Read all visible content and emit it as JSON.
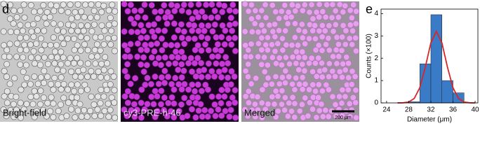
{
  "panel_labels": [
    "d",
    "e"
  ],
  "images": [
    {
      "label": "Bright-field"
    },
    {
      "label": "cy3-PRE-h-46"
    },
    {
      "label": "Merged"
    }
  ],
  "scale_bar": "200 μm",
  "chart_data": {
    "type": "histogram",
    "xlabel": "Diameter (μm)",
    "ylabel": "Counts (×100)",
    "bins": [
      26,
      28,
      30,
      32,
      34,
      36,
      38
    ],
    "values": [
      0.02,
      0.05,
      1.75,
      3.95,
      1.0,
      0.45
    ],
    "color": "#3a7bc8",
    "fit": {
      "color": "#d62728",
      "x": [
        26,
        27,
        28,
        29,
        30,
        31,
        32,
        33,
        34,
        35,
        36,
        37,
        38,
        39,
        40
      ],
      "values": [
        0,
        0.006,
        0.04,
        0.2,
        0.68,
        1.6,
        2.69,
        3.2,
        2.69,
        1.6,
        0.68,
        0.2,
        0.04,
        0.006,
        0
      ]
    },
    "xlim": [
      23,
      40.5
    ],
    "ylim": [
      0,
      4.2
    ],
    "xticks": [
      24,
      28,
      32,
      36,
      40
    ],
    "yticks": [
      0,
      1,
      2,
      3,
      4
    ]
  }
}
